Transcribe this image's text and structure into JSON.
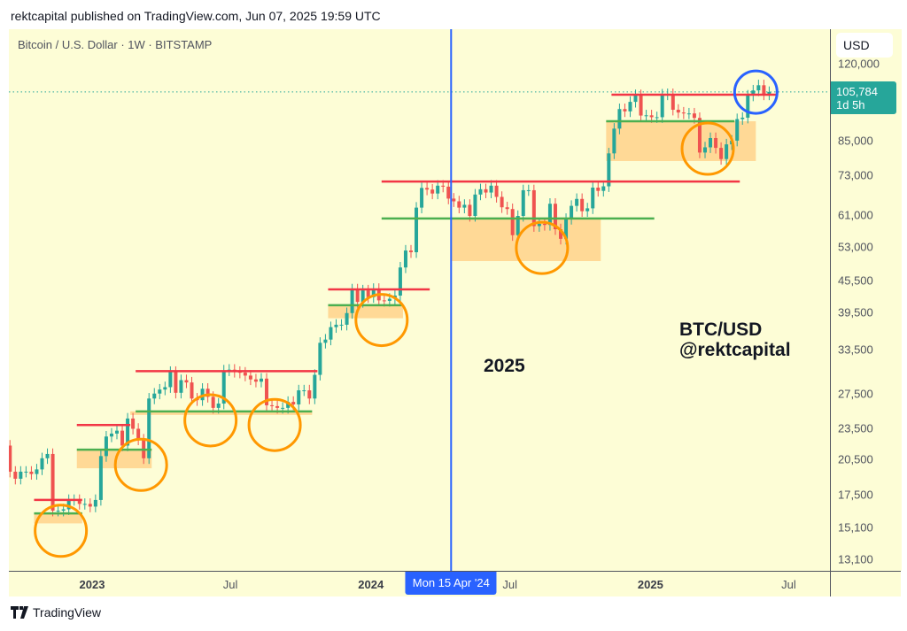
{
  "header": {
    "published": "rektcapital published on TradingView.com, Jun 07, 2025 19:59 UTC"
  },
  "legend": {
    "symbol": "Bitcoin / U.S. Dollar · 1W · BITSTAMP"
  },
  "price_axis": {
    "currency": "USD",
    "current_price": "105,784",
    "countdown": "1d 5h"
  },
  "crosshair": {
    "date_label": "Mon 15 Apr '24",
    "date": "2024-04-15"
  },
  "annotations_text": {
    "year": "2025",
    "pair": "BTC/USD",
    "handle": "@rektcapital"
  },
  "footer": {
    "brand": "TradingView"
  },
  "colors": {
    "up": "#26a69a",
    "down": "#ef5350",
    "resistance": "#f23645",
    "support": "#4caf50",
    "zone": "#ffcc80",
    "circle_orange": "#ff9800",
    "circle_blue": "#2962ff",
    "crosshair": "#2962ff",
    "background": "#fdfdd6"
  },
  "chart_data": {
    "type": "candlestick",
    "scale": "log",
    "grid": false,
    "xlim": [
      "2022-09-14",
      "2025-08-24"
    ],
    "ylim": [
      12460,
      140000
    ],
    "y_ticks": [
      120000,
      85000,
      73000,
      61000,
      53000,
      45500,
      39500,
      33500,
      27500,
      23500,
      20500,
      17500,
      15100,
      13100
    ],
    "y_tick_labels": [
      "120,000",
      "85,000",
      "73,000",
      "61,000",
      "53,000",
      "45,500",
      "39,500",
      "33,500",
      "27,500",
      "23,500",
      "20,500",
      "17,500",
      "15,100",
      "13,100"
    ],
    "x_ticks": [
      {
        "date": "2023-01-01",
        "label": "2023",
        "year": true
      },
      {
        "date": "2023-07-01",
        "label": "Jul",
        "year": false
      },
      {
        "date": "2024-01-01",
        "label": "2024",
        "year": true
      },
      {
        "date": "2024-07-01",
        "label": "Jul",
        "year": false
      },
      {
        "date": "2025-01-01",
        "label": "2025",
        "year": true
      },
      {
        "date": "2025-07-01",
        "label": "Jul",
        "year": false
      }
    ],
    "first_week": "2022-09-12",
    "first_open": 21800,
    "weekly_closes": [
      19400,
      18800,
      19400,
      19400,
      19200,
      19600,
      20600,
      21000,
      16300,
      16300,
      16400,
      17100,
      17100,
      16800,
      16800,
      16600,
      17100,
      20800,
      22700,
      23000,
      23300,
      21800,
      24600,
      23500,
      22400,
      20600,
      26900,
      27500,
      28000,
      28300,
      30300,
      27600,
      29200,
      28900,
      26900,
      26700,
      28100,
      27100,
      25800,
      26300,
      30500,
      30600,
      30300,
      30200,
      29800,
      29300,
      29000,
      29400,
      26100,
      26000,
      25800,
      25800,
      26500,
      26200,
      27900,
      27900,
      26900,
      29900,
      34500,
      35000,
      37000,
      37400,
      37400,
      39400,
      43800,
      41400,
      43600,
      42300,
      43900,
      41700,
      41600,
      42000,
      42600,
      48300,
      52100,
      51700,
      63100,
      68900,
      68400,
      67200,
      69600,
      69300,
      65700,
      64900,
      63100,
      63900,
      60800,
      66900,
      68500,
      67500,
      69600,
      66200,
      63200,
      62700,
      55800,
      60800,
      68200,
      68200,
      58100,
      58700,
      58400,
      64200,
      57300,
      54900,
      60000,
      63600,
      65600,
      62100,
      62900,
      69000,
      68000,
      69400,
      80400,
      89800,
      98000,
      97000,
      101200,
      104300,
      95200,
      95300,
      94500,
      94500,
      104600,
      104800,
      97700,
      96500,
      96100,
      96100,
      94200,
      80700,
      82600,
      86100,
      82400,
      78400,
      83700,
      85100,
      93700,
      94300,
      104100,
      106500,
      109000,
      104600,
      105784
    ],
    "current_price": 105784,
    "zones": [
      {
        "resistance": 17100,
        "support": 16100,
        "zone_low": 15400,
        "line_start": "2022-10-17",
        "line_end": "2022-12-19",
        "zone_start": "2022-10-17",
        "zone_end": "2022-12-19"
      },
      {
        "resistance": 23900,
        "support": 21400,
        "zone_low": 19700,
        "line_start": "2022-12-12",
        "line_end": "2023-02-20",
        "zone_start": "2022-12-12",
        "zone_end": "2023-03-20"
      },
      {
        "resistance": 30400,
        "support": 25400,
        "zone_low": 25000,
        "line_start": "2023-02-27",
        "line_end": "2023-10-23",
        "zone_start": "2023-02-20",
        "zone_end": "2023-10-16"
      },
      {
        "resistance": 43800,
        "support": 40800,
        "zone_low": 38500,
        "line_start": "2023-11-06",
        "line_end": "2024-03-18",
        "zone_start": "2023-11-06",
        "zone_end": "2024-02-12"
      },
      {
        "resistance": 70900,
        "support": 60100,
        "zone_low": 49700,
        "line_start": "2024-01-15",
        "line_end": "2025-04-28",
        "support_end": "2025-01-06",
        "zone_start": "2024-04-15",
        "zone_end": "2024-10-28"
      },
      {
        "resistance": 104500,
        "support": 92800,
        "zone_low": 77700,
        "line_start": "2024-11-11",
        "line_end": "2025-06-16",
        "support_start": "2024-11-04",
        "support_end": "2025-04-21",
        "zone_start": "2024-11-04",
        "zone_end": "2025-05-19"
      }
    ],
    "circles": [
      {
        "date": "2022-11-21",
        "price": 14900,
        "color": "orange"
      },
      {
        "date": "2023-03-06",
        "price": 20000,
        "color": "orange"
      },
      {
        "date": "2023-06-05",
        "price": 24400,
        "color": "orange"
      },
      {
        "date": "2023-08-28",
        "price": 23900,
        "color": "orange"
      },
      {
        "date": "2024-01-15",
        "price": 38200,
        "color": "orange"
      },
      {
        "date": "2024-08-12",
        "price": 52700,
        "color": "orange"
      },
      {
        "date": "2025-03-17",
        "price": 82100,
        "color": "orange"
      },
      {
        "date": "2025-05-19",
        "price": 105700,
        "color": "blue"
      }
    ]
  }
}
